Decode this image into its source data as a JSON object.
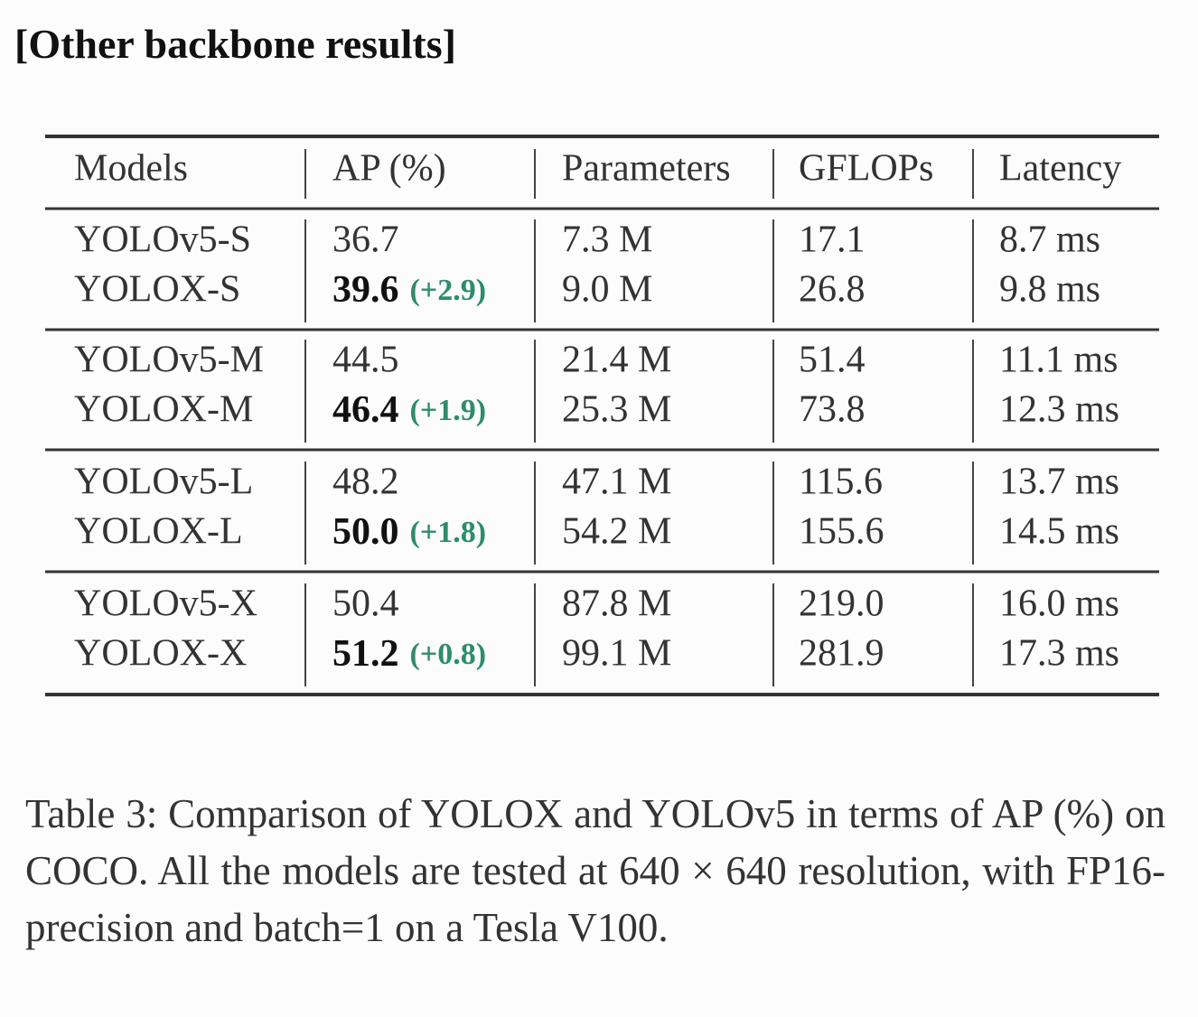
{
  "title": "[Other backbone results]",
  "table": {
    "header": [
      "Models",
      "AP (%)",
      "Parameters",
      "GFLOPs",
      "Latency"
    ],
    "groups": [
      [
        [
          "YOLOv5-S",
          "36.7",
          "7.3 M",
          "17.1",
          "8.7 ms"
        ],
        [
          "YOLOX-S",
          {
            "value": "39.6",
            "delta": "(+2.9)"
          },
          "9.0 M",
          "26.8",
          "9.8 ms"
        ]
      ],
      [
        [
          "YOLOv5-M",
          "44.5",
          "21.4 M",
          "51.4",
          "11.1 ms"
        ],
        [
          "YOLOX-M",
          {
            "value": "46.4",
            "delta": "(+1.9)"
          },
          "25.3 M",
          "73.8",
          "12.3 ms"
        ]
      ],
      [
        [
          "YOLOv5-L",
          "48.2",
          "47.1 M",
          "115.6",
          "13.7 ms"
        ],
        [
          "YOLOX-L",
          {
            "value": "50.0",
            "delta": "(+1.8)"
          },
          "54.2 M",
          "155.6",
          "14.5 ms"
        ]
      ],
      [
        [
          "YOLOv5-X",
          "50.4",
          "87.8 M",
          "219.0",
          "16.0 ms"
        ],
        [
          "YOLOX-X",
          {
            "value": "51.2",
            "delta": "(+0.8)"
          },
          "99.1 M",
          "281.9",
          "17.3 ms"
        ]
      ]
    ]
  },
  "caption": "Table 3: Comparison of YOLOX and YOLOv5 in terms of AP (%) on COCO. All the models are tested at 640 × 640 resolution, with FP16-precision and batch=1 on a Tesla V100."
}
